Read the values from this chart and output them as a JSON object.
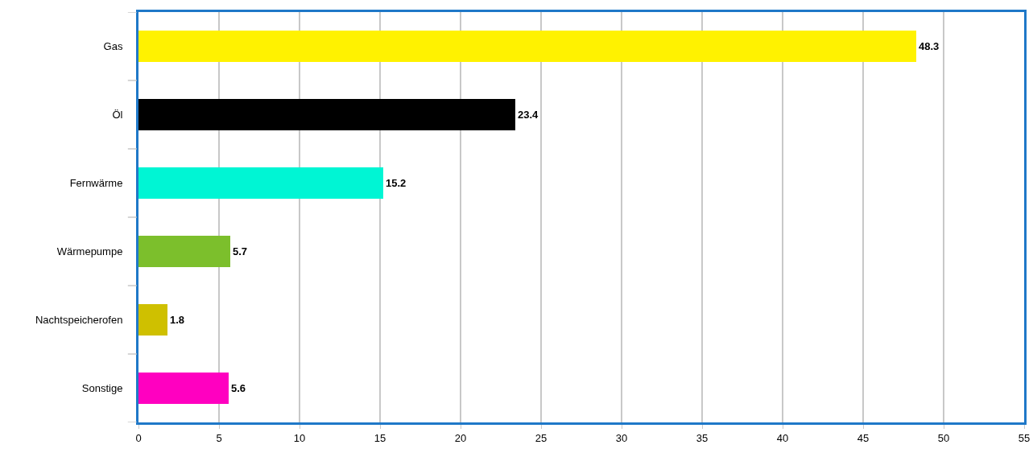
{
  "chart_data": {
    "type": "bar",
    "orientation": "horizontal",
    "categories": [
      "Gas",
      "Öl",
      "Fernwärme",
      "Wärmepumpe",
      "Nachtspeicherofen",
      "Sonstige"
    ],
    "values": [
      48.3,
      23.4,
      15.2,
      5.7,
      1.8,
      5.6
    ],
    "colors": [
      "#fff200",
      "#000000",
      "#00f5d4",
      "#7cbf2c",
      "#cfc000",
      "#ff00c0"
    ],
    "xlim": [
      0,
      55
    ],
    "xticks": [
      0,
      5,
      10,
      15,
      20,
      25,
      30,
      35,
      40,
      45,
      50,
      55
    ],
    "grid": "x",
    "data_labels": true
  }
}
